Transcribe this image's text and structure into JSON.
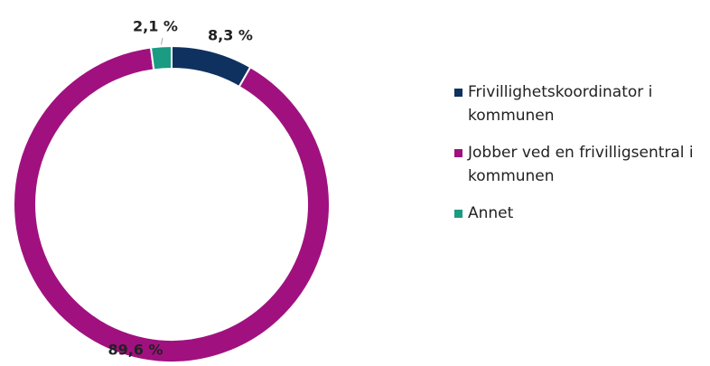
{
  "chart_data": {
    "type": "pie",
    "categories": [
      "Frivillighetskoordinator i kommunen",
      "Jobber ved en frivilligsentral i kommunen",
      "Annet"
    ],
    "values": [
      8.3,
      89.6,
      2.1
    ],
    "value_labels": [
      "8,3 %",
      "89,6 %",
      "2,1 %"
    ],
    "colors": [
      "#0e3160",
      "#a0117f",
      "#1a9b82"
    ],
    "legend": "right"
  }
}
